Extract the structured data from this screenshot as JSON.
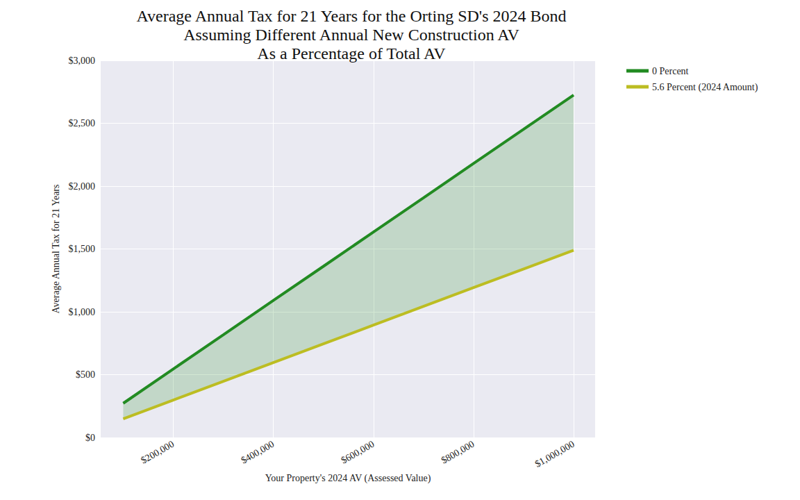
{
  "chart_data": {
    "type": "line",
    "title": "Average Annual Tax for 21 Years for the Orting SD's 2024 Bond\nAssuming Different Annual New Construction AV\nAs a Percentage of Total AV",
    "x_label": "Your Property's 2024 AV (Assessed Value)",
    "y_label": "Average Annual Tax for 21 Years",
    "x": [
      100000,
      200000,
      300000,
      400000,
      500000,
      600000,
      700000,
      800000,
      900000,
      1000000
    ],
    "series": [
      {
        "name": "0 Percent",
        "color": "#228b22",
        "values": [
          272,
          545,
          817,
          1090,
          1362,
          1635,
          1907,
          2180,
          2452,
          2725
        ]
      },
      {
        "name": "5.6 Percent (2024 Amount)",
        "color": "#bcbd22",
        "values": [
          149,
          298,
          447,
          596,
          745,
          894,
          1043,
          1192,
          1341,
          1490
        ]
      }
    ],
    "xlim": [
      55000,
      1043000
    ],
    "xticks": [
      {
        "value": 200000,
        "label": "$200,000"
      },
      {
        "value": 400000,
        "label": "$400,000"
      },
      {
        "value": 600000,
        "label": "$600,000"
      },
      {
        "value": 800000,
        "label": "$800,000"
      },
      {
        "value": 1000000,
        "label": "$1,000,000"
      }
    ],
    "ylim": [
      0,
      3000
    ],
    "yticks": [
      {
        "value": 0,
        "label": "$0"
      },
      {
        "value": 500,
        "label": "$500"
      },
      {
        "value": 1000,
        "label": "$1,000"
      },
      {
        "value": 1500,
        "label": "$1,500"
      },
      {
        "value": 2000,
        "label": "$2,000"
      },
      {
        "value": 2500,
        "label": "$2,500"
      },
      {
        "value": 3000,
        "label": "$3,000"
      }
    ],
    "grid": true,
    "legend": "right"
  }
}
